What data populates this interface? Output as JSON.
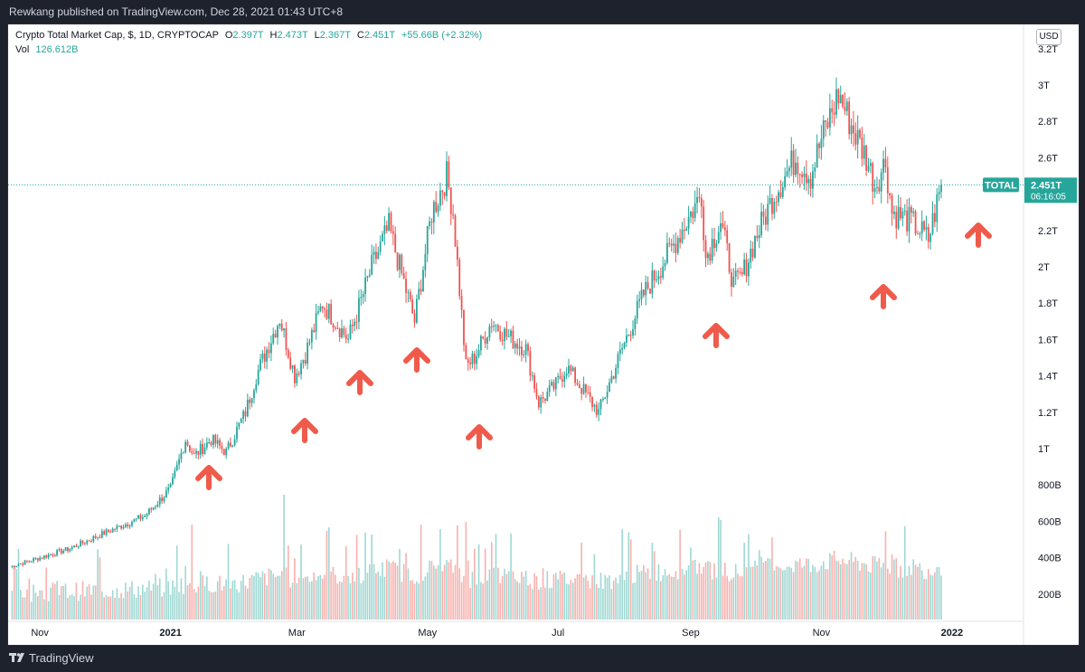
{
  "header": {
    "publisher": "Rewkang published on TradingView.com, Dec 28, 2021 01:43 UTC+8"
  },
  "legend": {
    "symbol": "Crypto Total Market Cap, $, 1D, CRYPTOCAP",
    "o_label": "O",
    "o_value": "2.397T",
    "h_label": "H",
    "h_value": "2.473T",
    "l_label": "L",
    "l_value": "2.367T",
    "c_label": "C",
    "c_value": "2.451T",
    "change": "+55.66B (+2.32%)",
    "vol_label": "Vol",
    "vol_value": "126.612B"
  },
  "currency_button": "USD",
  "price_tag": {
    "symbol": "TOTAL",
    "price": "2.451T",
    "countdown": "06:16:05"
  },
  "footer": {
    "brand": "TradingView"
  },
  "colors": {
    "up": "#26a69a",
    "down": "#ef5350",
    "arrow": "#f05a4a",
    "background": "#ffffff",
    "last_price_line": "#26a69a"
  },
  "chart_data": {
    "type": "candlestick",
    "title": "Crypto Total Market Cap",
    "interval": "1D",
    "x_ticks": [
      "Nov",
      "2021",
      "Mar",
      "May",
      "Jul",
      "Sep",
      "Nov",
      "2022"
    ],
    "y_ticks": [
      "3.2T",
      "3T",
      "2.8T",
      "2.6T",
      "2.2T",
      "2T",
      "1.8T",
      "1.6T",
      "1.4T",
      "1.2T",
      "1T",
      "800B",
      "600B",
      "400B",
      "200B"
    ],
    "y_range": [
      0.1,
      3.2
    ],
    "last_close": 2.451,
    "close_path_trillions": {
      "dates": [
        "2020-10-18",
        "2020-11-01",
        "2020-11-15",
        "2020-11-30",
        "2020-12-10",
        "2020-12-20",
        "2021-01-01",
        "2021-01-08",
        "2021-01-12",
        "2021-01-20",
        "2021-01-27",
        "2021-02-05",
        "2021-02-10",
        "2021-02-21",
        "2021-02-28",
        "2021-03-05",
        "2021-03-13",
        "2021-03-25",
        "2021-04-01",
        "2021-04-05",
        "2021-04-13",
        "2021-04-18",
        "2021-04-25",
        "2021-05-03",
        "2021-05-10",
        "2021-05-13",
        "2021-05-19",
        "2021-05-23",
        "2021-05-31",
        "2021-06-07",
        "2021-06-16",
        "2021-06-22",
        "2021-06-30",
        "2021-07-05",
        "2021-07-20",
        "2021-07-31",
        "2021-08-10",
        "2021-08-23",
        "2021-09-06",
        "2021-09-08",
        "2021-09-15",
        "2021-09-21",
        "2021-09-25",
        "2021-10-01",
        "2021-10-10",
        "2021-10-20",
        "2021-10-27",
        "2021-11-01",
        "2021-11-09",
        "2021-11-16",
        "2021-11-22",
        "2021-11-26",
        "2021-12-01",
        "2021-12-04",
        "2021-12-13",
        "2021-12-21",
        "2021-12-27"
      ],
      "values": [
        0.35,
        0.4,
        0.45,
        0.53,
        0.58,
        0.63,
        0.78,
        1.05,
        0.96,
        1.05,
        0.98,
        1.2,
        1.4,
        1.72,
        1.4,
        1.52,
        1.8,
        1.6,
        1.85,
        2.0,
        2.22,
        2.0,
        1.7,
        2.3,
        2.5,
        2.3,
        1.45,
        1.5,
        1.7,
        1.62,
        1.55,
        1.25,
        1.35,
        1.45,
        1.2,
        1.55,
        1.85,
        2.1,
        2.4,
        2.05,
        2.25,
        1.9,
        1.95,
        2.15,
        2.4,
        2.6,
        2.5,
        2.7,
        2.95,
        2.75,
        2.6,
        2.45,
        2.58,
        2.3,
        2.25,
        2.15,
        2.45
      ]
    },
    "volume_peak_dates": [
      "2021-01-11",
      "2021-02-23",
      "2021-04-18",
      "2021-05-19",
      "2021-09-07",
      "2021-12-04"
    ],
    "annotations": [
      "up-arrow",
      "up-arrow",
      "up-arrow",
      "up-arrow",
      "up-arrow",
      "up-arrow",
      "up-arrow",
      "up-arrow"
    ]
  }
}
